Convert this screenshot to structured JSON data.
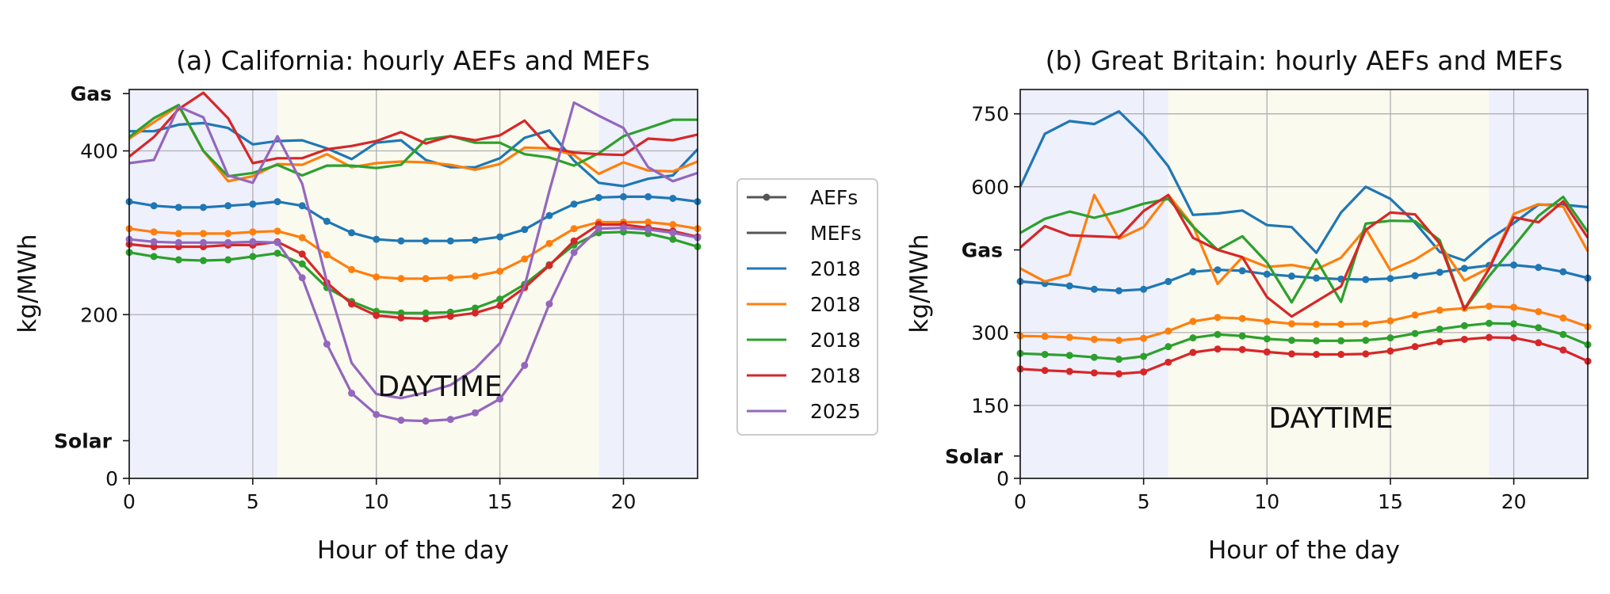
{
  "colors": {
    "2018_blue": "#1f77b4",
    "2018_orange": "#ff7f0e",
    "2018_green": "#2ca02c",
    "2018_red": "#d62728",
    "2025_purple": "#9467bd",
    "night_shade": "#eef0fc",
    "day_shade": "#fafaef"
  },
  "legend": {
    "aef_label": "AEFs",
    "mef_label": "MEFs",
    "series_labels": [
      "2018",
      "2018",
      "2018",
      "2018",
      "2025"
    ]
  },
  "chart_data": [
    {
      "type": "line",
      "title": "(a) California: hourly AEFs and MEFs",
      "xlabel": "Hour of the day",
      "ylabel": "kg/MWh",
      "xlim": [
        0,
        23
      ],
      "ylim": [
        0,
        475
      ],
      "xticks": [
        0,
        5,
        10,
        15,
        20
      ],
      "yticks": [
        0,
        200,
        400
      ],
      "ref_ticks": [
        {
          "label": "Gas",
          "value": 470
        },
        {
          "label": "Solar",
          "value": 46
        }
      ],
      "annotation": "DAYTIME",
      "night_ranges": [
        [
          0,
          6
        ],
        [
          19,
          23
        ]
      ],
      "day_range": [
        6,
        19
      ],
      "x": [
        0,
        1,
        2,
        3,
        4,
        5,
        6,
        7,
        8,
        9,
        10,
        11,
        12,
        13,
        14,
        15,
        16,
        17,
        18,
        19,
        20,
        21,
        22,
        23
      ],
      "series": [
        {
          "name": "2018",
          "kind": "AEF",
          "color": "#1f77b4",
          "values": [
            338,
            333,
            331,
            331,
            333,
            335,
            338,
            333,
            314,
            300,
            292,
            290,
            290,
            290,
            291,
            295,
            304,
            321,
            335,
            343,
            344,
            344,
            342,
            338
          ]
        },
        {
          "name": "2018",
          "kind": "AEF",
          "color": "#ff7f0e",
          "values": [
            305,
            301,
            299,
            299,
            299,
            301,
            302,
            294,
            273,
            255,
            246,
            244,
            244,
            245,
            247,
            253,
            268,
            287,
            305,
            313,
            313,
            313,
            310,
            305
          ]
        },
        {
          "name": "2018",
          "kind": "AEF",
          "color": "#2ca02c",
          "values": [
            276,
            271,
            267,
            266,
            267,
            271,
            275,
            262,
            233,
            216,
            204,
            202,
            202,
            203,
            208,
            219,
            237,
            261,
            285,
            300,
            301,
            299,
            292,
            283
          ]
        },
        {
          "name": "2018",
          "kind": "AEF",
          "color": "#d62728",
          "values": [
            286,
            283,
            283,
            283,
            285,
            285,
            289,
            274,
            239,
            213,
            199,
            196,
            195,
            198,
            202,
            211,
            233,
            260,
            290,
            310,
            310,
            306,
            302,
            295
          ]
        },
        {
          "name": "2025",
          "kind": "AEF",
          "color": "#9467bd",
          "values": [
            292,
            289,
            288,
            288,
            288,
            289,
            288,
            245,
            164,
            104,
            78,
            71,
            70,
            72,
            80,
            97,
            138,
            213,
            276,
            305,
            306,
            304,
            300,
            294
          ]
        },
        {
          "name": "2018",
          "kind": "MEF",
          "color": "#1f77b4",
          "values": [
            424,
            424,
            432,
            434,
            428,
            408,
            412,
            413,
            403,
            390,
            410,
            413,
            389,
            380,
            380,
            391,
            416,
            425,
            388,
            361,
            357,
            366,
            370,
            402
          ]
        },
        {
          "name": "2018",
          "kind": "MEF",
          "color": "#ff7f0e",
          "values": [
            415,
            435,
            455,
            400,
            363,
            369,
            384,
            383,
            396,
            380,
            385,
            387,
            386,
            383,
            377,
            384,
            404,
            403,
            395,
            372,
            386,
            376,
            375,
            387
          ]
        },
        {
          "name": "2018",
          "kind": "MEF",
          "color": "#2ca02c",
          "values": [
            417,
            440,
            456,
            400,
            369,
            373,
            383,
            370,
            382,
            382,
            379,
            383,
            414,
            418,
            410,
            410,
            396,
            392,
            382,
            397,
            418,
            428,
            438,
            438
          ]
        },
        {
          "name": "2018",
          "kind": "MEF",
          "color": "#d62728",
          "values": [
            393,
            417,
            451,
            471,
            440,
            385,
            391,
            391,
            402,
            406,
            412,
            423,
            409,
            418,
            413,
            419,
            437,
            404,
            398,
            396,
            395,
            415,
            413,
            420
          ]
        },
        {
          "name": "2025",
          "kind": "MEF",
          "color": "#9467bd",
          "values": [
            385,
            389,
            454,
            441,
            370,
            361,
            418,
            360,
            240,
            141,
            103,
            98,
            105,
            114,
            134,
            165,
            235,
            351,
            459,
            443,
            428,
            380,
            363,
            373
          ]
        }
      ]
    },
    {
      "type": "line",
      "title": "(b) Great Britain: hourly AEFs and MEFs",
      "xlabel": "Hour of the day",
      "ylabel": "kg/MWh",
      "xlim": [
        0,
        23
      ],
      "ylim": [
        0,
        800
      ],
      "xticks": [
        0,
        5,
        10,
        15,
        20
      ],
      "yticks": [
        0,
        150,
        300,
        600,
        750
      ],
      "ref_ticks": [
        {
          "label": "Gas",
          "value": 470
        },
        {
          "label": "Solar",
          "value": 46
        }
      ],
      "annotation": "DAYTIME",
      "night_ranges": [
        [
          0,
          6
        ],
        [
          19,
          23
        ]
      ],
      "day_range": [
        6,
        19
      ],
      "x": [
        0,
        1,
        2,
        3,
        4,
        5,
        6,
        7,
        8,
        9,
        10,
        11,
        12,
        13,
        14,
        15,
        16,
        17,
        18,
        19,
        20,
        21,
        22,
        23
      ],
      "series": [
        {
          "name": "2018",
          "kind": "AEF",
          "color": "#1f77b4",
          "values": [
            405,
            401,
            396,
            389,
            386,
            389,
            405,
            425,
            429,
            427,
            420,
            416,
            412,
            410,
            409,
            411,
            417,
            424,
            432,
            438,
            439,
            434,
            425,
            412
          ]
        },
        {
          "name": "2018",
          "kind": "AEF",
          "color": "#ff7f0e",
          "values": [
            293,
            292,
            290,
            286,
            284,
            288,
            303,
            323,
            331,
            329,
            323,
            318,
            317,
            317,
            318,
            324,
            336,
            346,
            350,
            354,
            352,
            343,
            330,
            312
          ]
        },
        {
          "name": "2018",
          "kind": "AEF",
          "color": "#2ca02c",
          "values": [
            257,
            255,
            253,
            249,
            245,
            251,
            271,
            289,
            296,
            293,
            287,
            284,
            283,
            283,
            284,
            289,
            298,
            307,
            314,
            319,
            318,
            310,
            296,
            275
          ]
        },
        {
          "name": "2018",
          "kind": "AEF",
          "color": "#d62728",
          "values": [
            225,
            222,
            220,
            217,
            215,
            219,
            239,
            259,
            266,
            265,
            260,
            256,
            255,
            255,
            256,
            262,
            271,
            281,
            286,
            290,
            289,
            279,
            264,
            241
          ]
        },
        {
          "name": "2018",
          "kind": "MEF",
          "color": "#1f77b4",
          "values": [
            600,
            709,
            735,
            729,
            755,
            705,
            642,
            542,
            545,
            551,
            521,
            517,
            464,
            547,
            600,
            575,
            526,
            466,
            448,
            492,
            525,
            563,
            563,
            558
          ]
        },
        {
          "name": "2018",
          "kind": "MEF",
          "color": "#ff7f0e",
          "values": [
            432,
            405,
            419,
            583,
            493,
            517,
            583,
            520,
            400,
            455,
            435,
            439,
            430,
            454,
            514,
            428,
            450,
            482,
            407,
            433,
            544,
            564,
            559,
            467
          ]
        },
        {
          "name": "2018",
          "kind": "MEF",
          "color": "#2ca02c",
          "values": [
            505,
            534,
            549,
            536,
            549,
            565,
            575,
            518,
            470,
            498,
            444,
            362,
            450,
            363,
            524,
            530,
            529,
            490,
            348,
            416,
            477,
            540,
            579,
            507
          ]
        },
        {
          "name": "2018",
          "kind": "MEF",
          "color": "#d62728",
          "values": [
            475,
            519,
            500,
            498,
            496,
            550,
            583,
            495,
            470,
            455,
            373,
            333,
            364,
            395,
            511,
            547,
            543,
            483,
            348,
            431,
            537,
            527,
            570,
            495
          ]
        }
      ]
    }
  ]
}
